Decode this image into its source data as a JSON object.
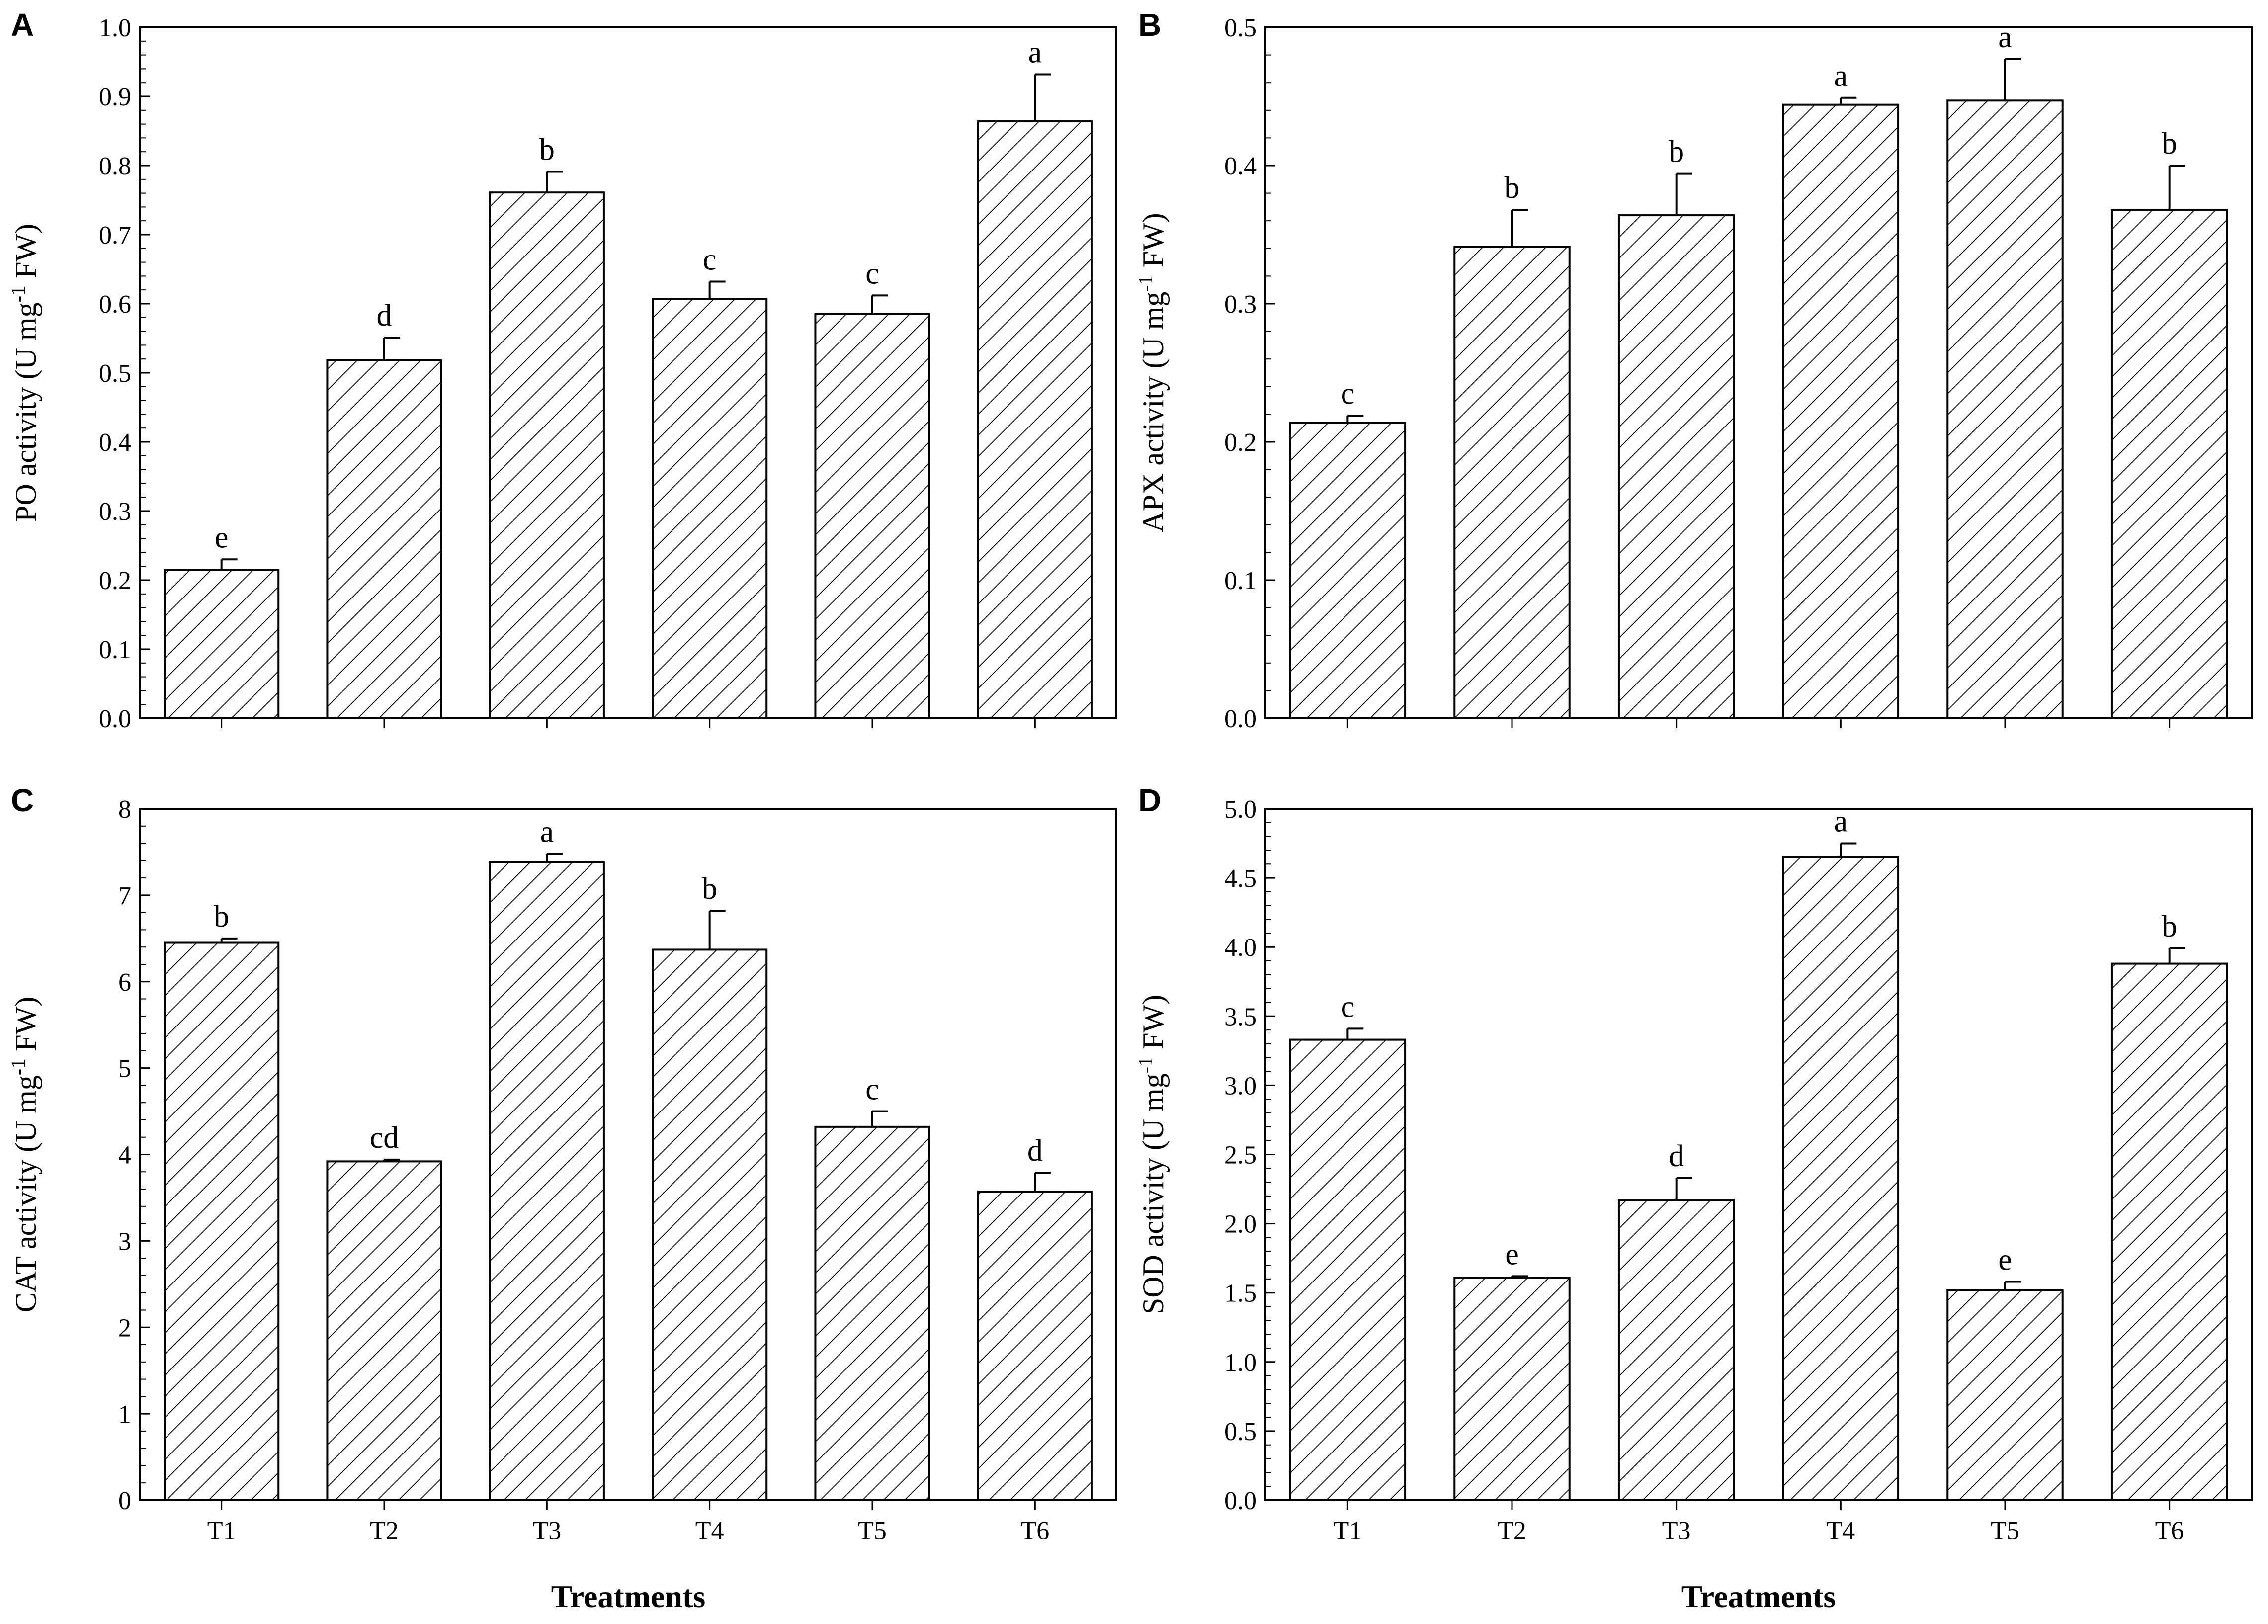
{
  "chart_data": [
    {
      "panel": "A",
      "type": "bar",
      "categories": [
        "T1",
        "T2",
        "T3",
        "T4",
        "T5",
        "T6"
      ],
      "values": [
        0.215,
        0.518,
        0.761,
        0.607,
        0.585,
        0.864
      ],
      "errors": [
        0.015,
        0.033,
        0.03,
        0.025,
        0.027,
        0.068
      ],
      "significance": [
        "e",
        "d",
        "b",
        "c",
        "c",
        "a"
      ],
      "ylabel": "PO activity (U mg",
      "ylabel_sup": "-1",
      "ylabel_tail": " FW)",
      "ylim": [
        0,
        1.0
      ],
      "yticks": [
        "0.0",
        "0.1",
        "0.2",
        "0.3",
        "0.4",
        "0.5",
        "0.6",
        "0.7",
        "0.8",
        "0.9",
        "1.0"
      ],
      "show_x_tick_labels": false,
      "xlabel": ""
    },
    {
      "panel": "B",
      "type": "bar",
      "categories": [
        "T1",
        "T2",
        "T3",
        "T4",
        "T5",
        "T6"
      ],
      "values": [
        0.214,
        0.341,
        0.364,
        0.444,
        0.447,
        0.368
      ],
      "errors": [
        0.005,
        0.027,
        0.03,
        0.005,
        0.03,
        0.032
      ],
      "significance": [
        "c",
        "b",
        "b",
        "a",
        "a",
        "b"
      ],
      "ylabel": "APX activity (U mg",
      "ylabel_sup": "-1",
      "ylabel_tail": " FW)",
      "ylim": [
        0,
        0.5
      ],
      "yticks": [
        "0.0",
        "0.1",
        "0.2",
        "0.3",
        "0.4",
        "0.5"
      ],
      "show_x_tick_labels": false,
      "xlabel": ""
    },
    {
      "panel": "C",
      "type": "bar",
      "categories": [
        "T1",
        "T2",
        "T3",
        "T4",
        "T5",
        "T6"
      ],
      "values": [
        6.45,
        3.92,
        7.38,
        6.37,
        4.32,
        3.57
      ],
      "errors": [
        0.05,
        0.02,
        0.1,
        0.45,
        0.18,
        0.22
      ],
      "significance": [
        "b",
        "cd",
        "a",
        "b",
        "c",
        "d"
      ],
      "ylabel": "CAT activity (U mg",
      "ylabel_sup": "-1",
      "ylabel_tail": " FW)",
      "ylim": [
        0,
        8
      ],
      "yticks": [
        "0",
        "1",
        "2",
        "3",
        "4",
        "5",
        "6",
        "7",
        "8"
      ],
      "show_x_tick_labels": true,
      "xlabel": "Treatments"
    },
    {
      "panel": "D",
      "type": "bar",
      "categories": [
        "T1",
        "T2",
        "T3",
        "T4",
        "T5",
        "T6"
      ],
      "values": [
        3.33,
        1.61,
        2.17,
        4.65,
        1.52,
        3.88
      ],
      "errors": [
        0.08,
        0.01,
        0.16,
        0.1,
        0.06,
        0.11
      ],
      "significance": [
        "c",
        "e",
        "d",
        "a",
        "e",
        "b"
      ],
      "ylabel": "SOD activity (U mg",
      "ylabel_sup": "-1",
      "ylabel_tail": " FW)",
      "ylim": [
        0,
        5.0
      ],
      "yticks": [
        "0.0",
        "0.5",
        "1.0",
        "1.5",
        "2.0",
        "2.5",
        "3.0",
        "3.5",
        "4.0",
        "4.5",
        "5.0"
      ],
      "show_x_tick_labels": true,
      "xlabel": "Treatments"
    }
  ]
}
